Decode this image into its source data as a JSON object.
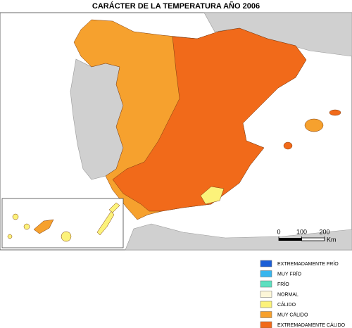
{
  "title": "CARÁCTER DE LA TEMPERATURA AÑO 2006",
  "legend": [
    {
      "label": "EXTREMADAMENTE FRÍO",
      "color": "#1a5ed6"
    },
    {
      "label": "MUY FRÍO",
      "color": "#38b6ee"
    },
    {
      "label": "FRÍO",
      "color": "#5de0c0"
    },
    {
      "label": "NORMAL",
      "color": "#fcf6d8"
    },
    {
      "label": "CÁLIDO",
      "color": "#fcf27a"
    },
    {
      "label": "MUY CÁLIDO",
      "color": "#f6a12e"
    },
    {
      "label": "EXTREMADAMENTE CÁLIDO",
      "color": "#f16a1a"
    }
  ],
  "scale_bar": {
    "ticks": [
      0,
      100,
      200
    ],
    "unit": "Km"
  }
}
